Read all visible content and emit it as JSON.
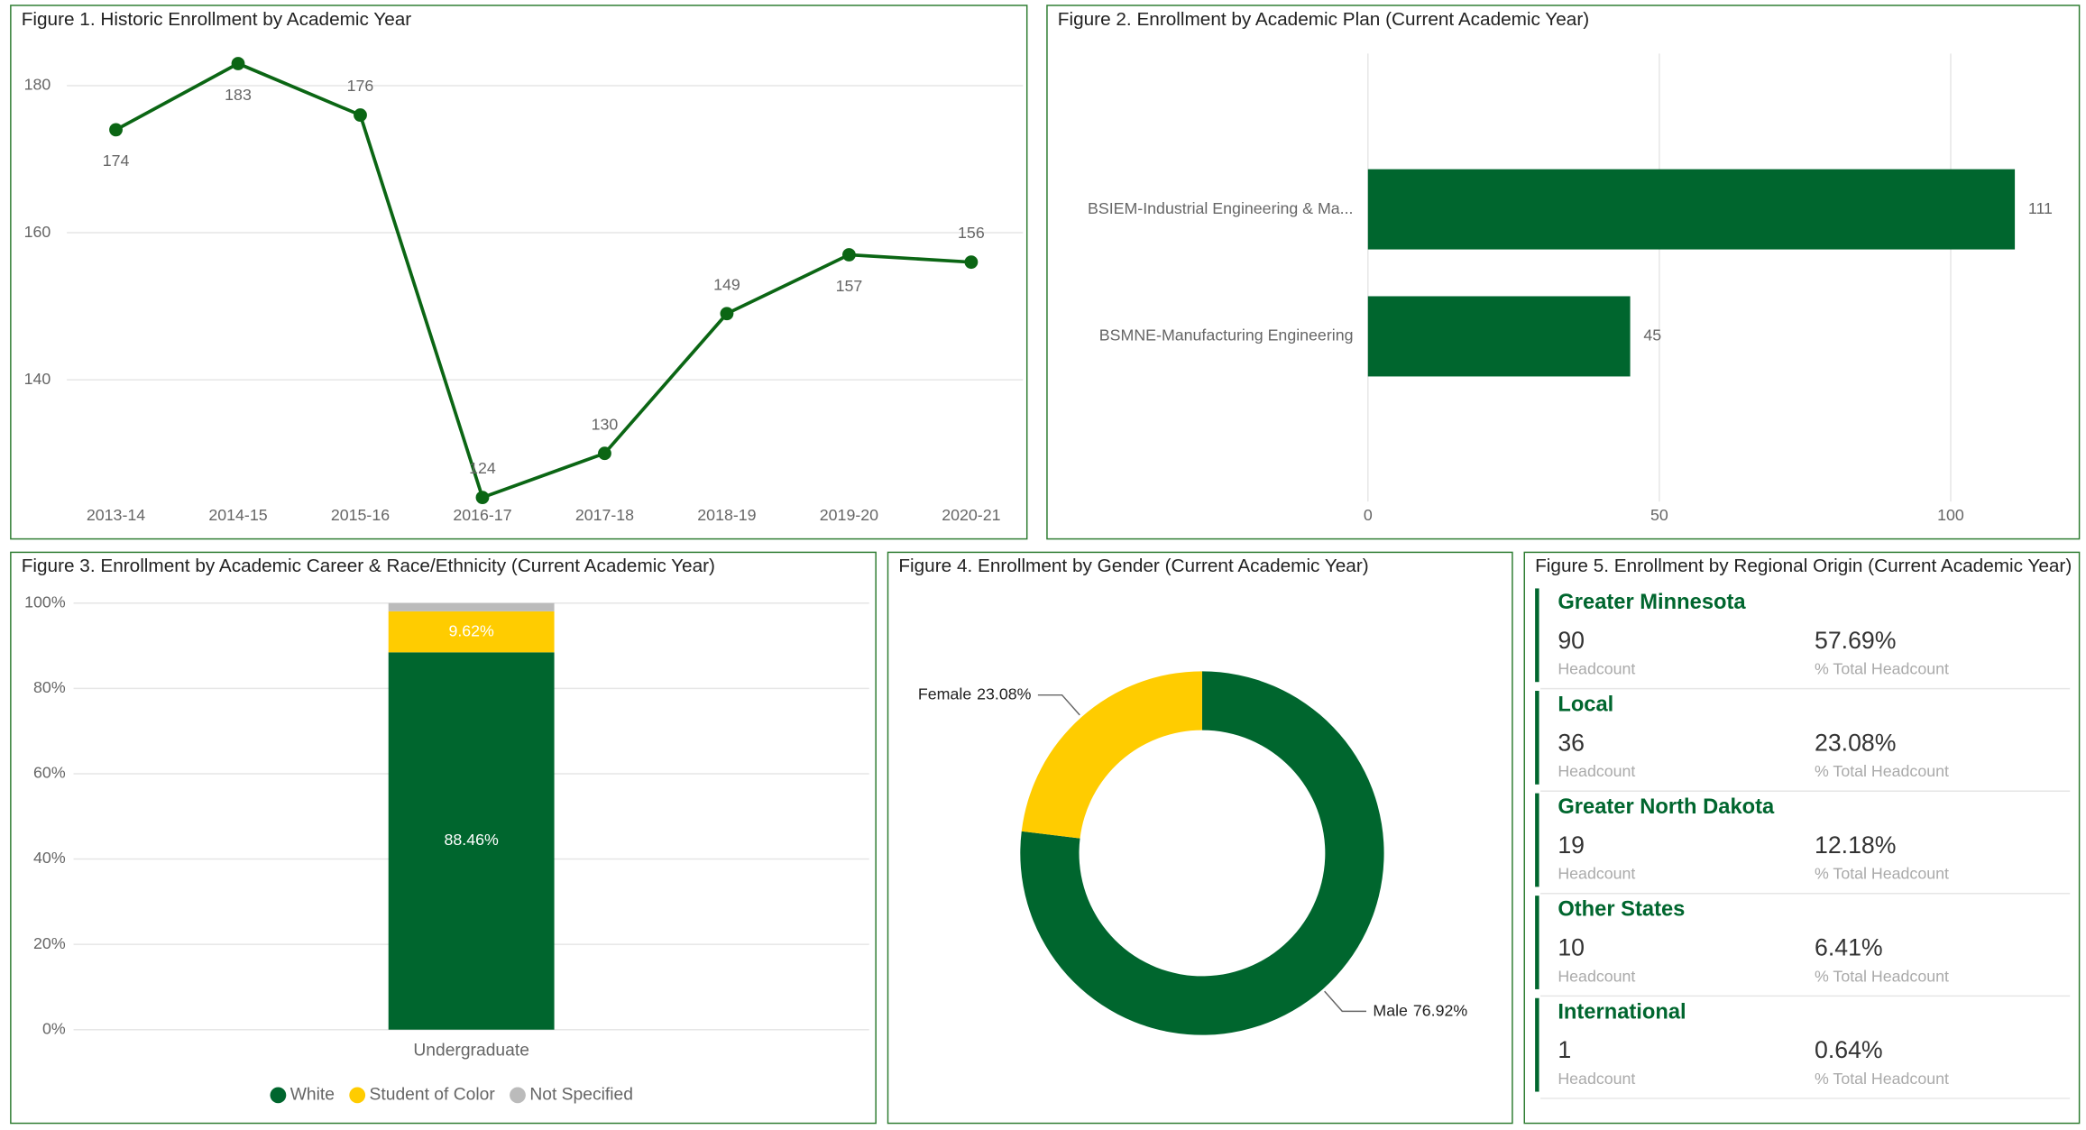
{
  "chart_data": [
    {
      "type": "line",
      "title": "Figure 1. Historic Enrollment by Academic Year",
      "categories": [
        "2013-14",
        "2014-15",
        "2015-16",
        "2016-17",
        "2017-18",
        "2018-19",
        "2019-20",
        "2020-21"
      ],
      "values": [
        174,
        183,
        176,
        124,
        130,
        149,
        157,
        156
      ],
      "color": "#0b6614",
      "ylim": [
        124,
        186
      ],
      "yticks": [
        140,
        160,
        180
      ],
      "grid": true
    },
    {
      "type": "hbar",
      "title": "Figure 2. Enrollment by Academic Plan (Current Academic Year)",
      "categories": [
        "BSIEM-Industrial Engineering & Ma...",
        "BSMNE-Manufacturing Engineering"
      ],
      "values": [
        111,
        45
      ],
      "color": "#00662e",
      "xlim": [
        0,
        120
      ],
      "xticks": [
        0,
        50,
        100
      ],
      "grid": true
    },
    {
      "type": "stacked_bar",
      "title": "Figure 3. Enrollment by Academic Career & Race/Ethnicity (Current Academic Year)",
      "categories": [
        "Undergraduate"
      ],
      "series": [
        {
          "name": "White",
          "color": "#00662e",
          "values": [
            88.46
          ],
          "value_labels": [
            "88.46%"
          ]
        },
        {
          "name": "Student of Color",
          "color": "#ffcc00",
          "values": [
            9.62
          ],
          "value_labels": [
            "9.62%"
          ]
        },
        {
          "name": "Not Specified",
          "color": "#bbbbbb",
          "values": [
            1.92
          ]
        }
      ],
      "ylim": [
        0,
        100
      ],
      "yticks": [
        {
          "value": 0,
          "label": "0%"
        },
        {
          "value": 20,
          "label": "20%"
        },
        {
          "value": 40,
          "label": "40%"
        },
        {
          "value": 60,
          "label": "60%"
        },
        {
          "value": 80,
          "label": "80%"
        },
        {
          "value": 100,
          "label": "100%"
        }
      ],
      "grid": true,
      "legend": "bottom"
    },
    {
      "type": "donut",
      "title": "Figure 4. Enrollment by Gender (Current Academic Year)",
      "categories": [
        "Male",
        "Female"
      ],
      "values": [
        76.92,
        23.08
      ],
      "value_labels": [
        "76.92%",
        "23.08%"
      ],
      "colors": [
        "#00662e",
        "#ffcc00"
      ]
    }
  ],
  "regional_origin": {
    "title": "Figure 5. Enrollment by Regional Origin (Current Academic Year)",
    "headcount_label": "Headcount",
    "percent_label": "% Total Headcount",
    "regions": [
      {
        "name": "Greater Minnesota",
        "headcount": 90,
        "percent": "57.69%"
      },
      {
        "name": "Local",
        "headcount": 36,
        "percent": "23.08%"
      },
      {
        "name": "Greater North Dakota",
        "headcount": 19,
        "percent": "12.18%"
      },
      {
        "name": "Other States",
        "headcount": 10,
        "percent": "6.41%"
      },
      {
        "name": "International",
        "headcount": 1,
        "percent": "0.64%"
      }
    ]
  }
}
